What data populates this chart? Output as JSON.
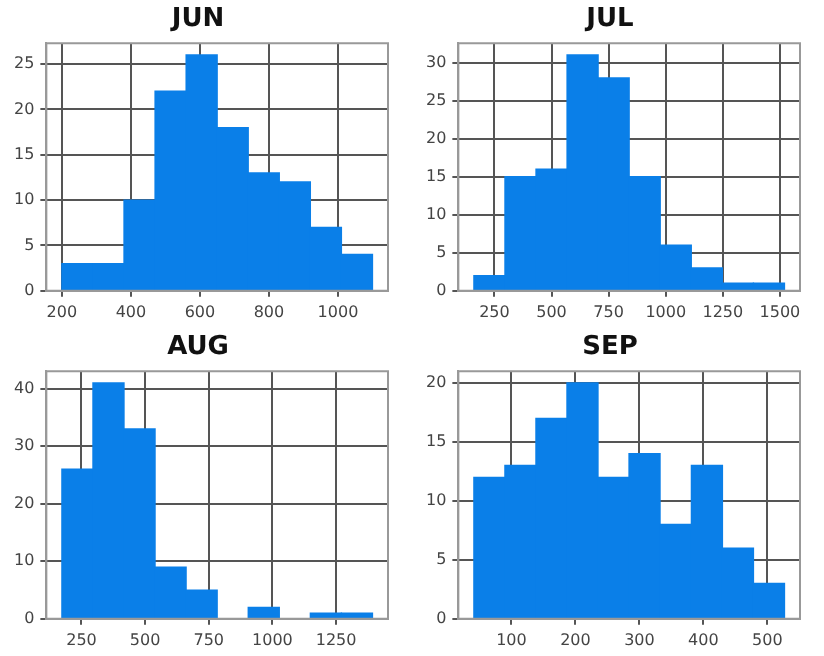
{
  "chart_data": [
    {
      "type": "histogram",
      "title": "JUN",
      "color": "#0a7fe8",
      "bins": [
        200,
        290,
        380,
        470,
        560,
        650,
        740,
        830,
        920,
        1010,
        1100
      ],
      "values": [
        3,
        3,
        10,
        22,
        26,
        18,
        13,
        12,
        7,
        4
      ],
      "xlim": [
        155,
        1145
      ],
      "xticks": [
        200,
        400,
        600,
        800,
        1000
      ],
      "ylim": [
        0,
        27.3
      ],
      "yticks": [
        0,
        5,
        10,
        15,
        20,
        25
      ],
      "grid": true
    },
    {
      "type": "histogram",
      "title": "JUL",
      "color": "#0a7fe8",
      "bins": [
        160,
        296,
        432,
        568,
        704,
        840,
        976,
        1112,
        1248,
        1384,
        1520
      ],
      "values": [
        2,
        15,
        16,
        31,
        28,
        15,
        6,
        3,
        1,
        1
      ],
      "xlim": [
        92,
        1588
      ],
      "xticks": [
        250,
        500,
        750,
        1000,
        1250,
        1500
      ],
      "ylim": [
        0,
        32.55
      ],
      "yticks": [
        0,
        5,
        10,
        15,
        20,
        25,
        30
      ],
      "grid": true
    },
    {
      "type": "histogram",
      "title": "AUG",
      "color": "#0a7fe8",
      "bins": [
        173,
        295,
        417,
        539,
        661,
        783,
        905,
        1027,
        1149,
        1271,
        1393
      ],
      "values": [
        26,
        41,
        33,
        9,
        5,
        0,
        2,
        0,
        1,
        1
      ],
      "xlim": [
        112,
        1454
      ],
      "xticks": [
        250,
        500,
        750,
        1000,
        1250
      ],
      "ylim": [
        0,
        43.05
      ],
      "yticks": [
        0,
        10,
        20,
        30,
        40
      ],
      "grid": true
    },
    {
      "type": "histogram",
      "title": "SEP",
      "color": "#0a7fe8",
      "bins": [
        41,
        90,
        138,
        187,
        235,
        284,
        332,
        381,
        430,
        478,
        527
      ],
      "values": [
        12,
        13,
        17,
        20,
        12,
        14,
        8,
        13,
        6,
        3
      ],
      "xlim": [
        17,
        551
      ],
      "xticks": [
        100,
        200,
        300,
        400,
        500
      ],
      "ylim": [
        0,
        21
      ],
      "yticks": [
        0,
        5,
        10,
        15,
        20
      ],
      "grid": true
    }
  ]
}
